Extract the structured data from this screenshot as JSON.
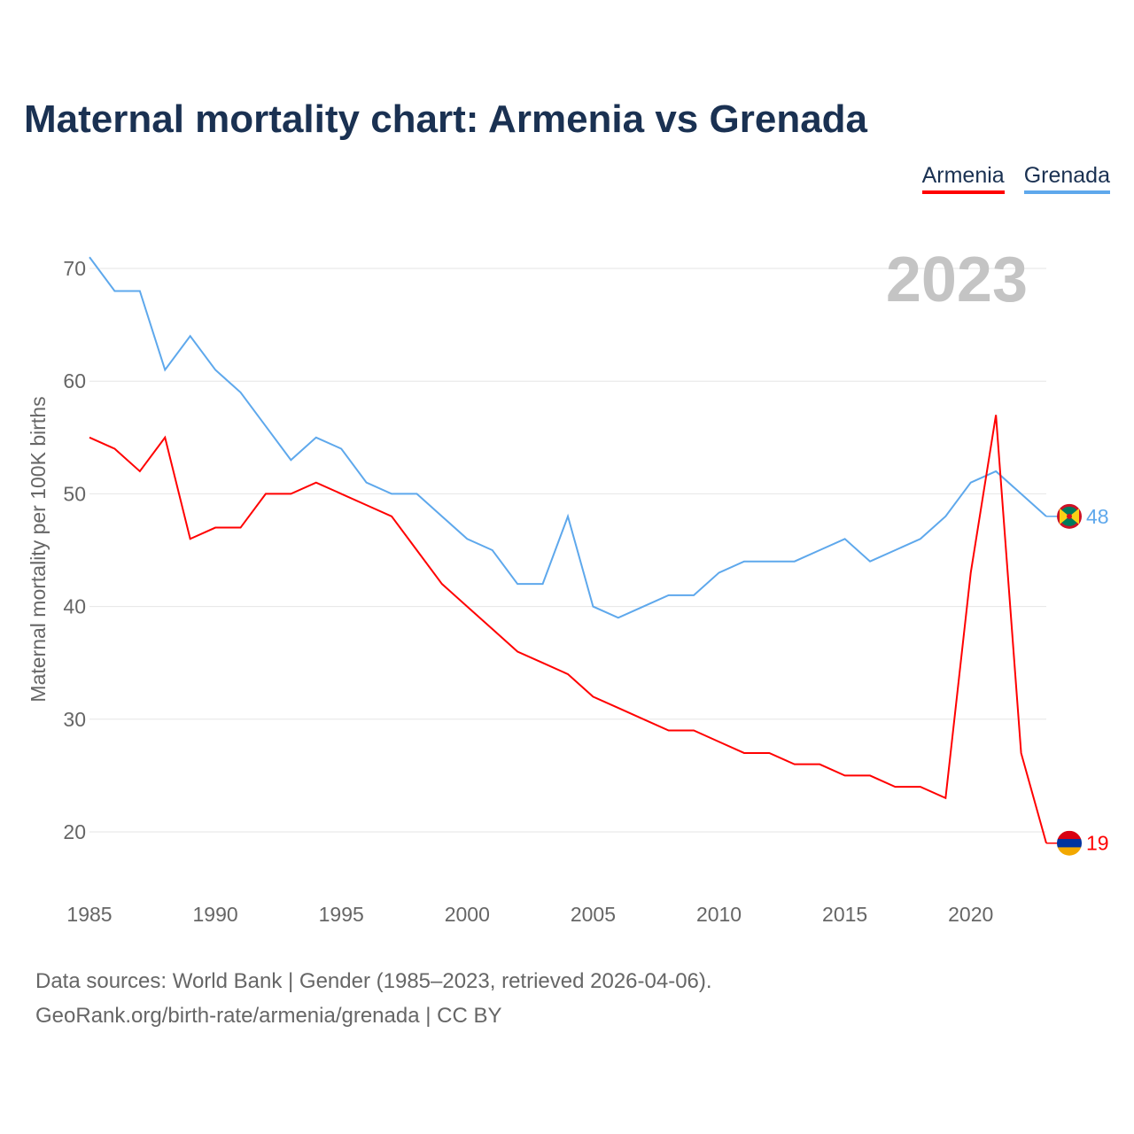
{
  "title": "Maternal mortality chart: Armenia vs Grenada",
  "legend": [
    {
      "name": "Armenia",
      "color": "#ff0000"
    },
    {
      "name": "Grenada",
      "color": "#5ea8ec"
    }
  ],
  "footer": {
    "line1": "Data sources: World Bank | Gender (1985–2023, retrieved 2026-04-06).",
    "line2": "GeoRank.org/birth-rate/armenia/grenada | CC BY"
  },
  "chart_data": {
    "type": "line",
    "title": "Maternal mortality chart: Armenia vs Grenada",
    "ylabel": "Maternal mortality per 100K births",
    "xlabel": "",
    "year_label": "2023",
    "xlim": [
      1985,
      2023
    ],
    "ylim": [
      15,
      73
    ],
    "xticks": [
      1985,
      1990,
      1995,
      2000,
      2005,
      2010,
      2015,
      2020
    ],
    "yticks": [
      20,
      30,
      40,
      50,
      60,
      70
    ],
    "grid": true,
    "legend_position": "top-right",
    "x": [
      1985,
      1986,
      1987,
      1988,
      1989,
      1990,
      1991,
      1992,
      1993,
      1994,
      1995,
      1996,
      1997,
      1998,
      1999,
      2000,
      2001,
      2002,
      2003,
      2004,
      2005,
      2006,
      2007,
      2008,
      2009,
      2010,
      2011,
      2012,
      2013,
      2014,
      2015,
      2016,
      2017,
      2018,
      2019,
      2020,
      2021,
      2022,
      2023
    ],
    "series": [
      {
        "name": "Armenia",
        "color": "#ff0000",
        "end_label": "19",
        "values": [
          55,
          54,
          52,
          55,
          46,
          47,
          47,
          50,
          50,
          51,
          50,
          49,
          48,
          45,
          42,
          40,
          38,
          36,
          35,
          34,
          32,
          31,
          30,
          29,
          29,
          28,
          27,
          27,
          26,
          26,
          25,
          25,
          24,
          24,
          23,
          43,
          57,
          27,
          19
        ]
      },
      {
        "name": "Grenada",
        "color": "#5ea8ec",
        "end_label": "48",
        "values": [
          71,
          68,
          68,
          61,
          64,
          61,
          59,
          56,
          53,
          55,
          54,
          51,
          50,
          50,
          48,
          46,
          45,
          42,
          42,
          48,
          40,
          39,
          40,
          41,
          41,
          43,
          44,
          44,
          44,
          45,
          46,
          44,
          45,
          46,
          48,
          51,
          52,
          50,
          48
        ]
      }
    ]
  }
}
